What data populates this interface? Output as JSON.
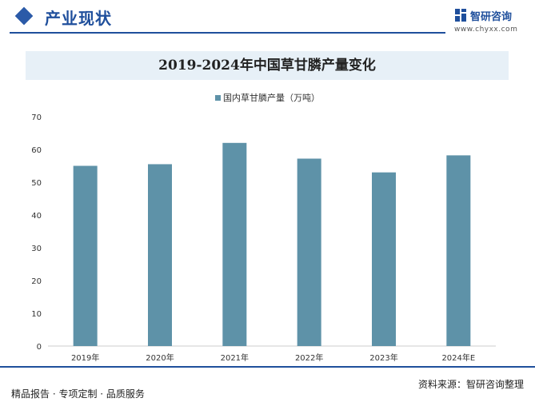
{
  "header": {
    "section_title": "产业现状",
    "logo_name": "智研咨询",
    "logo_url": "www.chyxx.com",
    "logo_icon": "zhiyan-logo-icon"
  },
  "chart_data": {
    "type": "bar",
    "title": "2019-2024年中国草甘膦产量变化",
    "categories": [
      "2019年",
      "2020年",
      "2021年",
      "2022年",
      "2023年",
      "2024年E"
    ],
    "series": [
      {
        "name": "国内草甘膦产量（万吨）",
        "values": [
          55,
          55.5,
          62,
          57.2,
          53,
          58.2
        ],
        "color": "#5e92a8"
      }
    ],
    "ylim": [
      0,
      70
    ],
    "yticks": [
      0,
      10,
      20,
      30,
      40,
      50,
      60,
      70
    ],
    "xlabel": "",
    "ylabel": "",
    "grid": false,
    "legend_position": "top-center"
  },
  "footer": {
    "left": "精品报告 · 专项定制 · 品质服务",
    "right": "资料来源：智研咨询整理"
  },
  "colors": {
    "brand_blue": "#1f4f9c",
    "bar": "#5e92a8",
    "title_band": "#e7f0f7"
  }
}
